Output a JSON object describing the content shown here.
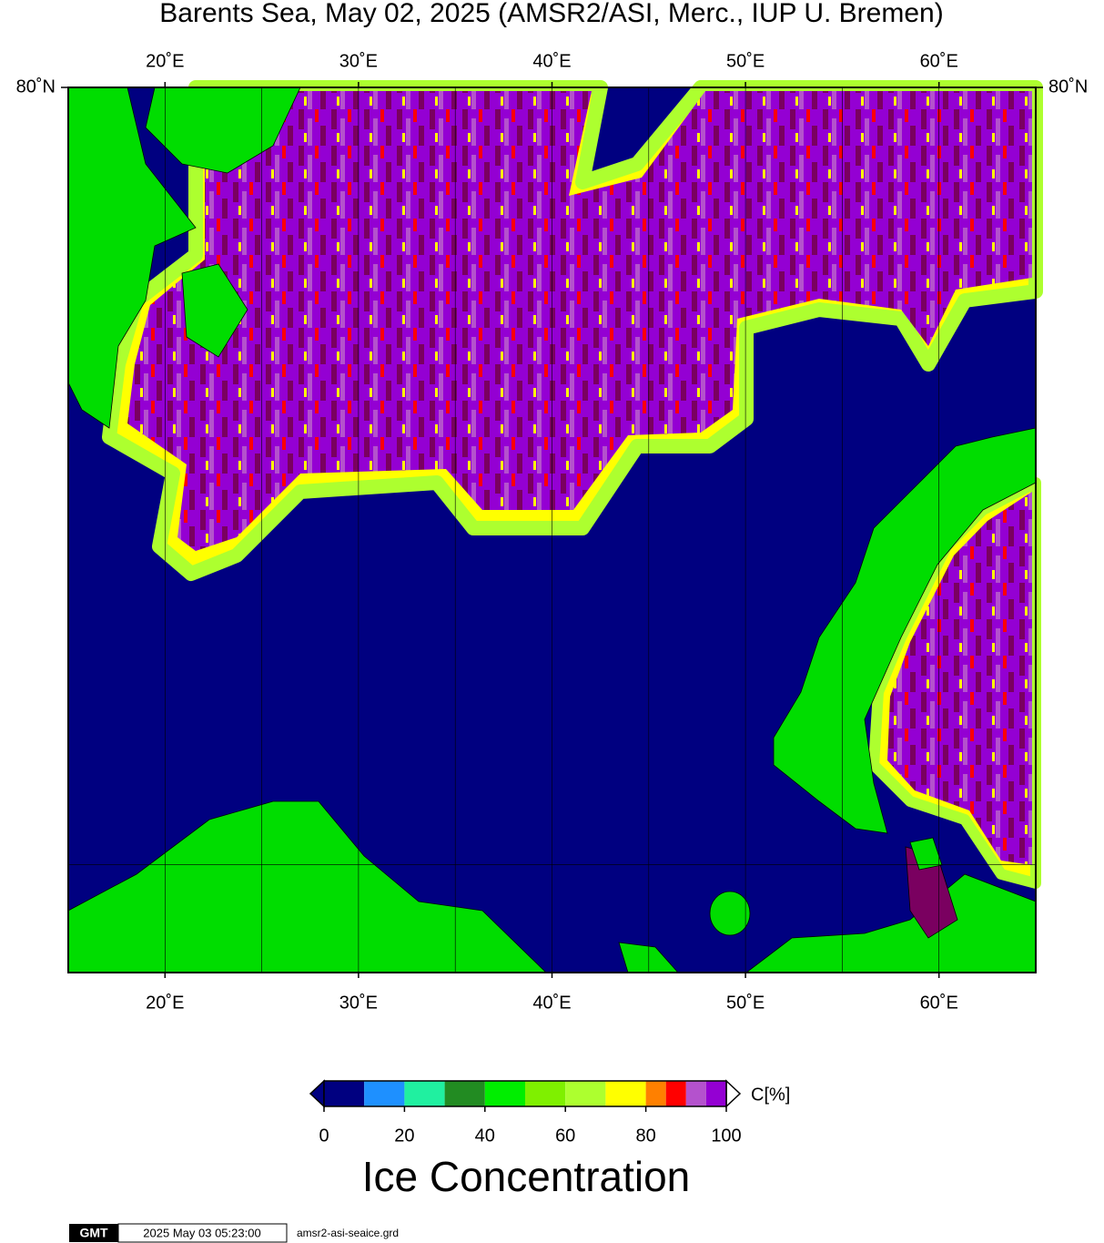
{
  "title": "Barents Sea, May 02, 2025 (AMSR2/ASI, Merc., IUP U. Bremen)",
  "map": {
    "xlim": [
      15,
      65
    ],
    "ylim": [
      68,
      80
    ],
    "xticks": [
      {
        "value": 20,
        "label": "20˚E"
      },
      {
        "value": 30,
        "label": "30˚E"
      },
      {
        "value": 40,
        "label": "40˚E"
      },
      {
        "value": 50,
        "label": "50˚E"
      },
      {
        "value": 60,
        "label": "60˚E"
      }
    ],
    "xgrid": [
      20,
      25,
      30,
      35,
      40,
      45,
      50,
      55,
      60
    ],
    "yticks": [
      {
        "value": 80,
        "label": "80˚N"
      }
    ],
    "ygrid": [
      70
    ]
  },
  "colorbar": {
    "bounds": [
      0,
      10,
      20,
      30,
      40,
      50,
      60,
      70,
      80,
      85,
      90,
      95,
      100
    ],
    "colors": [
      "#000080",
      "#1e90ff",
      "#20f0a0",
      "#228b22",
      "#00ee00",
      "#7ff000",
      "#adff2f",
      "#ffff00",
      "#ff8000",
      "#ff0000",
      "#b452cd",
      "#9400d3"
    ],
    "ticks": [
      0,
      20,
      40,
      60,
      80,
      100
    ],
    "unit": "C[%]",
    "label": "Ice Concentration"
  },
  "footer": {
    "logo": "GMT",
    "timestamp": "2025 May 03 05:23:00",
    "file": "amsr2-asi-seaice.grd"
  }
}
